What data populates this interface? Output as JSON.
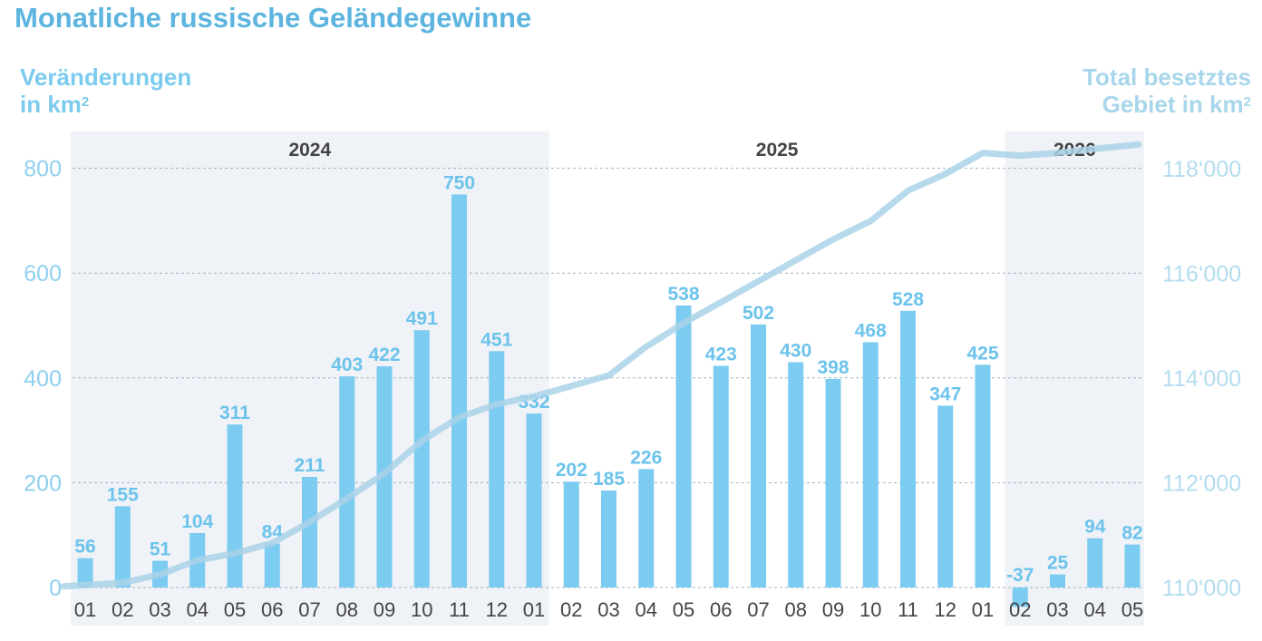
{
  "title": "Monatliche russische Geländegewinne",
  "y_left_label": {
    "line1": "Veränderungen",
    "line2": "in km",
    "sup": "2"
  },
  "y_right_label": {
    "line1": "Total besetztes",
    "line2": "Gebiet in km",
    "sup": "2"
  },
  "colors": {
    "title": "#5db5df",
    "bar": "#7ccbf1",
    "bar_label": "#6cc3ec",
    "line": "#a9d2e8",
    "left_axis": "#8fd0f0",
    "right_axis": "#b3dcee",
    "year_band": "#eff2f6",
    "grid": "#9fb3c4",
    "tick": "#444444",
    "year_label": "#444444"
  },
  "chart_data": {
    "type": "bar",
    "categories": [
      "01",
      "02",
      "03",
      "04",
      "05",
      "06",
      "07",
      "08",
      "09",
      "10",
      "11",
      "12",
      "01",
      "02",
      "03",
      "04",
      "05",
      "06",
      "07",
      "08",
      "09",
      "10",
      "11",
      "12",
      "01",
      "02",
      "03",
      "04",
      "05"
    ],
    "years": [
      {
        "label": "2024",
        "from": 0,
        "to": 12,
        "shaded": true
      },
      {
        "label": "2025",
        "from": 13,
        "to": 24,
        "shaded": false
      },
      {
        "label": "2026",
        "from": 25,
        "to": 28,
        "shaded": true
      }
    ],
    "series": [
      {
        "type": "bar",
        "axis": "left",
        "values": [
          56,
          155,
          51,
          104,
          311,
          84,
          211,
          403,
          422,
          491,
          750,
          451,
          332,
          202,
          185,
          226,
          538,
          423,
          502,
          430,
          398,
          468,
          528,
          347,
          425,
          -37,
          25,
          94,
          82
        ]
      },
      {
        "type": "line",
        "axis": "right",
        "values": [
          110020,
          110090,
          110250,
          110520,
          110650,
          110850,
          111250,
          111700,
          112180,
          112800,
          113250,
          113500,
          113650,
          113850,
          114050,
          114600,
          115050,
          115450,
          115850,
          116250,
          116650,
          117000,
          117580,
          117900,
          118300,
          118250,
          118300,
          118380,
          118460
        ]
      }
    ],
    "y_left": {
      "min": 0,
      "max": 800,
      "ticks": [
        "0",
        "200",
        "400",
        "600",
        "800"
      ],
      "tick_values": [
        0,
        200,
        400,
        600,
        800
      ]
    },
    "y_right": {
      "min": 110000,
      "max": 118000,
      "ticks": [
        "110‘000",
        "112‘000",
        "114‘000",
        "116‘000",
        "118‘000"
      ],
      "tick_values": [
        110000,
        112000,
        114000,
        116000,
        118000
      ]
    },
    "grid": true
  }
}
